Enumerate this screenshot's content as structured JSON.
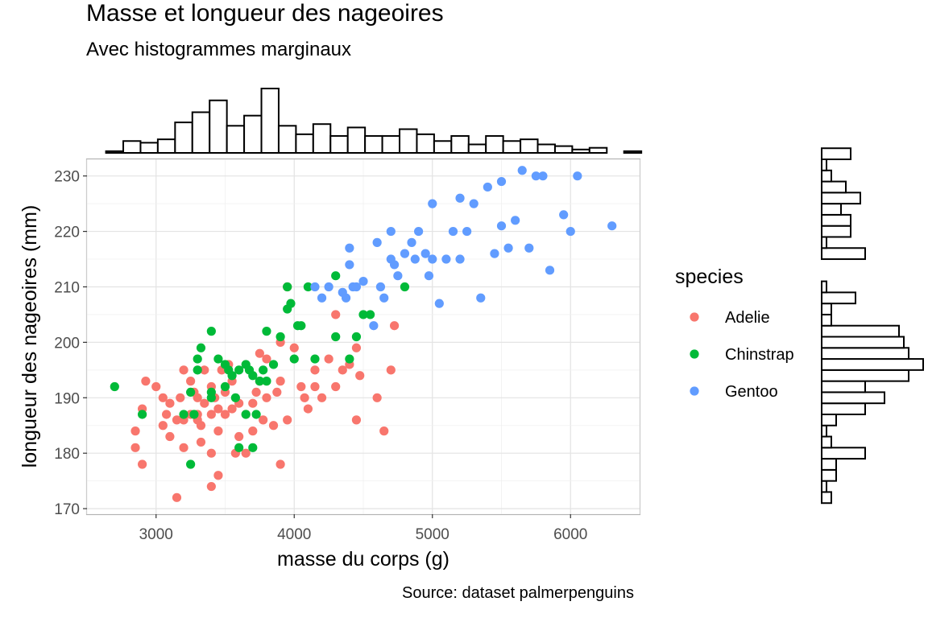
{
  "chart_data": {
    "type": "scatter",
    "title": "Masse et longueur des nageoires",
    "subtitle": "Avec histogrammes marginaux",
    "caption": "Source: dataset palmerpenguins",
    "xlabel": "masse du corps (g)",
    "ylabel": "longueur des nageoires (mm)",
    "xlim": [
      2500,
      6500
    ],
    "ylim": [
      169,
      233
    ],
    "x_ticks": [
      3000,
      4000,
      5000,
      6000
    ],
    "y_ticks": [
      170,
      180,
      190,
      200,
      210,
      220,
      230
    ],
    "grid": true,
    "legend": {
      "title": "species",
      "position": "right"
    },
    "series": [
      {
        "name": "Adelie",
        "color": "#F8766D",
        "points": [
          [
            2850,
            184
          ],
          [
            2850,
            181
          ],
          [
            2900,
            178
          ],
          [
            2900,
            188
          ],
          [
            2925,
            193
          ],
          [
            3000,
            192
          ],
          [
            3050,
            190
          ],
          [
            3050,
            185
          ],
          [
            3075,
            187
          ],
          [
            3100,
            189
          ],
          [
            3100,
            183
          ],
          [
            3150,
            186
          ],
          [
            3150,
            172
          ],
          [
            3175,
            190
          ],
          [
            3200,
            186
          ],
          [
            3200,
            195
          ],
          [
            3200,
            181
          ],
          [
            3250,
            187
          ],
          [
            3250,
            193
          ],
          [
            3275,
            191
          ],
          [
            3300,
            190
          ],
          [
            3300,
            186
          ],
          [
            3300,
            187
          ],
          [
            3325,
            185
          ],
          [
            3325,
            182
          ],
          [
            3350,
            195
          ],
          [
            3350,
            189
          ],
          [
            3400,
            180
          ],
          [
            3400,
            174
          ],
          [
            3400,
            187
          ],
          [
            3400,
            192
          ],
          [
            3425,
            190
          ],
          [
            3450,
            176
          ],
          [
            3450,
            188
          ],
          [
            3450,
            184
          ],
          [
            3475,
            195
          ],
          [
            3500,
            191
          ],
          [
            3500,
            187
          ],
          [
            3525,
            196
          ],
          [
            3550,
            193
          ],
          [
            3550,
            188
          ],
          [
            3575,
            180
          ],
          [
            3600,
            183
          ],
          [
            3600,
            189
          ],
          [
            3650,
            187
          ],
          [
            3650,
            180
          ],
          [
            3700,
            189
          ],
          [
            3700,
            184
          ],
          [
            3725,
            191
          ],
          [
            3750,
            193
          ],
          [
            3750,
            198
          ],
          [
            3775,
            186
          ],
          [
            3800,
            190
          ],
          [
            3800,
            197
          ],
          [
            3850,
            185
          ],
          [
            3875,
            191
          ],
          [
            3900,
            178
          ],
          [
            3900,
            193
          ],
          [
            3900,
            200
          ],
          [
            3950,
            186
          ],
          [
            3950,
            210
          ],
          [
            4000,
            199
          ],
          [
            4050,
            192
          ],
          [
            4075,
            190
          ],
          [
            4100,
            188
          ],
          [
            4150,
            195
          ],
          [
            4150,
            192
          ],
          [
            4200,
            190
          ],
          [
            4250,
            197
          ],
          [
            4300,
            205
          ],
          [
            4300,
            192
          ],
          [
            4350,
            195
          ],
          [
            4400,
            196
          ],
          [
            4450,
            199
          ],
          [
            4450,
            186
          ],
          [
            4475,
            194
          ],
          [
            4600,
            190
          ],
          [
            4650,
            184
          ],
          [
            4700,
            195
          ],
          [
            4725,
            203
          ]
        ]
      },
      {
        "name": "Chinstrap",
        "color": "#00BA38",
        "points": [
          [
            2700,
            192
          ],
          [
            2900,
            187
          ],
          [
            3200,
            187
          ],
          [
            3250,
            178
          ],
          [
            3250,
            191
          ],
          [
            3275,
            187
          ],
          [
            3300,
            195
          ],
          [
            3300,
            197
          ],
          [
            3325,
            199
          ],
          [
            3400,
            190
          ],
          [
            3400,
            202
          ],
          [
            3400,
            191
          ],
          [
            3450,
            197
          ],
          [
            3500,
            192
          ],
          [
            3500,
            196
          ],
          [
            3525,
            195
          ],
          [
            3550,
            194
          ],
          [
            3575,
            190
          ],
          [
            3600,
            181
          ],
          [
            3600,
            195
          ],
          [
            3650,
            187
          ],
          [
            3650,
            196
          ],
          [
            3675,
            195
          ],
          [
            3700,
            194
          ],
          [
            3700,
            181
          ],
          [
            3725,
            187
          ],
          [
            3750,
            193
          ],
          [
            3775,
            195
          ],
          [
            3800,
            202
          ],
          [
            3800,
            193
          ],
          [
            3850,
            196
          ],
          [
            3900,
            201
          ],
          [
            3950,
            210
          ],
          [
            3950,
            206
          ],
          [
            3975,
            207
          ],
          [
            4000,
            197
          ],
          [
            4025,
            203
          ],
          [
            4050,
            203
          ],
          [
            4100,
            210
          ],
          [
            4150,
            197
          ],
          [
            4300,
            201
          ],
          [
            4300,
            212
          ],
          [
            4400,
            197
          ],
          [
            4450,
            201
          ],
          [
            4500,
            205
          ],
          [
            4550,
            205
          ],
          [
            4800,
            210
          ]
        ]
      },
      {
        "name": "Gentoo",
        "color": "#619CFF",
        "points": [
          [
            4150,
            210
          ],
          [
            4200,
            208
          ],
          [
            4250,
            210
          ],
          [
            4350,
            209
          ],
          [
            4375,
            208
          ],
          [
            4400,
            217
          ],
          [
            4400,
            214
          ],
          [
            4425,
            210
          ],
          [
            4450,
            210
          ],
          [
            4500,
            211
          ],
          [
            4575,
            203
          ],
          [
            4600,
            218
          ],
          [
            4625,
            210
          ],
          [
            4650,
            208
          ],
          [
            4700,
            215
          ],
          [
            4700,
            220
          ],
          [
            4725,
            214
          ],
          [
            4750,
            212
          ],
          [
            4800,
            216
          ],
          [
            4850,
            218
          ],
          [
            4875,
            215
          ],
          [
            4900,
            220
          ],
          [
            4950,
            216
          ],
          [
            4975,
            212
          ],
          [
            5000,
            215
          ],
          [
            5000,
            225
          ],
          [
            5050,
            207
          ],
          [
            5100,
            215
          ],
          [
            5150,
            220
          ],
          [
            5200,
            215
          ],
          [
            5200,
            226
          ],
          [
            5250,
            220
          ],
          [
            5300,
            225
          ],
          [
            5350,
            208
          ],
          [
            5400,
            228
          ],
          [
            5450,
            216
          ],
          [
            5500,
            221
          ],
          [
            5500,
            229
          ],
          [
            5550,
            217
          ],
          [
            5600,
            222
          ],
          [
            5650,
            231
          ],
          [
            5700,
            217
          ],
          [
            5750,
            230
          ],
          [
            5800,
            230
          ],
          [
            5850,
            213
          ],
          [
            5950,
            223
          ],
          [
            6000,
            220
          ],
          [
            6050,
            230
          ],
          [
            6300,
            221
          ]
        ]
      }
    ],
    "marginal_x": {
      "type": "histogram",
      "bin_width": 125,
      "bin_start": 2637.5,
      "counts": [
        1,
        7,
        6,
        8,
        18,
        24,
        31,
        16,
        22,
        38,
        16,
        11,
        17,
        10,
        15,
        10,
        10,
        14,
        11,
        7,
        10,
        5,
        10,
        7,
        8,
        5,
        4,
        2,
        3,
        0,
        1
      ]
    },
    "marginal_y": {
      "type": "histogram",
      "bin_width": 2,
      "bin_start": 171,
      "counts": [
        2,
        1,
        3,
        3,
        9,
        2,
        1,
        3,
        9,
        13,
        9,
        18,
        21,
        18,
        17,
        16,
        2,
        2,
        7,
        1,
        0,
        0,
        9,
        1,
        6,
        6,
        4,
        8,
        5,
        2,
        1,
        6
      ]
    }
  }
}
